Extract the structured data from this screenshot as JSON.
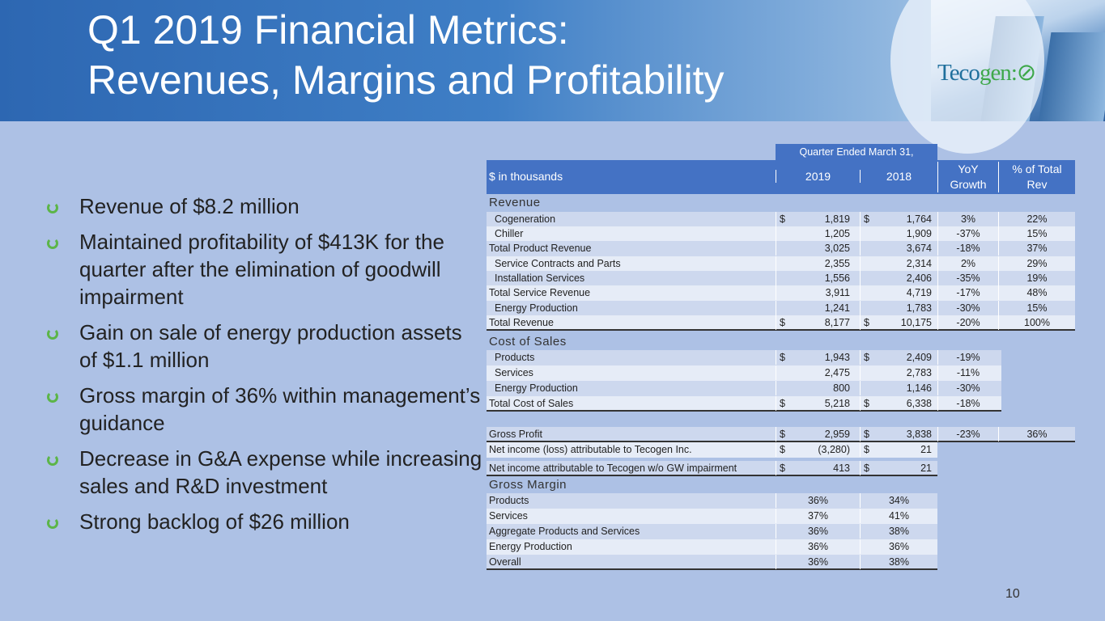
{
  "title": {
    "line1": "Q1 2019 Financial Metrics:",
    "line2": "Revenues, Margins and Profitability"
  },
  "logo": {
    "part1": "Teco",
    "part2": "gen"
  },
  "bullets": [
    "Revenue of $8.2 million",
    "Maintained profitability of $413K for the quarter after the elimination of goodwill impairment",
    "Gain on sale of energy production assets of $1.1 million",
    "Gross margin of 36% within management’s guidance",
    "Decrease in G&A expense while increasing sales and R&D investment",
    "Strong backlog of $26 million"
  ],
  "table": {
    "period_header": "Quarter Ended March 31,",
    "columns": {
      "label": "$ in thousands",
      "y2019": "2019",
      "y2018": "2018",
      "yoy1": "YoY",
      "yoy2": "Growth",
      "pct1": "% of Total",
      "pct2": "Rev"
    },
    "sections": {
      "revenue": "Revenue",
      "cost": "Cost of Sales",
      "margin": "Gross Margin"
    },
    "revenue_rows": [
      {
        "label": "Cogeneration",
        "d1": "$",
        "v2019": "1,819",
        "d2": "$",
        "v2018": "1,764",
        "yoy": "3%",
        "pct": "22%",
        "indent": true
      },
      {
        "label": "Chiller",
        "d1": "",
        "v2019": "1,205",
        "d2": "",
        "v2018": "1,909",
        "yoy": "-37%",
        "pct": "15%",
        "indent": true
      },
      {
        "label": "Total Product Revenue",
        "d1": "",
        "v2019": "3,025",
        "d2": "",
        "v2018": "3,674",
        "yoy": "-18%",
        "pct": "37%"
      },
      {
        "label": "Service Contracts and Parts",
        "d1": "",
        "v2019": "2,355",
        "d2": "",
        "v2018": "2,314",
        "yoy": "2%",
        "pct": "29%",
        "indent": true
      },
      {
        "label": "Installation Services",
        "d1": "",
        "v2019": "1,556",
        "d2": "",
        "v2018": "2,406",
        "yoy": "-35%",
        "pct": "19%",
        "indent": true
      },
      {
        "label": "Total Service Revenue",
        "d1": "",
        "v2019": "3,911",
        "d2": "",
        "v2018": "4,719",
        "yoy": "-17%",
        "pct": "48%"
      },
      {
        "label": "Energy Production",
        "d1": "",
        "v2019": "1,241",
        "d2": "",
        "v2018": "1,783",
        "yoy": "-30%",
        "pct": "15%",
        "indent": true
      },
      {
        "label": "Total Revenue",
        "d1": "$",
        "v2019": "8,177",
        "d2": "$",
        "v2018": "10,175",
        "yoy": "-20%",
        "pct": "100%"
      }
    ],
    "cost_rows": [
      {
        "label": "Products",
        "d1": "$",
        "v2019": "1,943",
        "d2": "$",
        "v2018": "2,409",
        "yoy": "-19%",
        "indent": true
      },
      {
        "label": "Services",
        "d1": "",
        "v2019": "2,475",
        "d2": "",
        "v2018": "2,783",
        "yoy": "-11%",
        "indent": true
      },
      {
        "label": "Energy Production",
        "d1": "",
        "v2019": "800",
        "d2": "",
        "v2018": "1,146",
        "yoy": "-30%",
        "indent": true
      },
      {
        "label": "Total Cost of Sales",
        "d1": "$",
        "v2019": "5,218",
        "d2": "$",
        "v2018": "6,338",
        "yoy": "-18%"
      }
    ],
    "profit_rows": [
      {
        "label": "Gross Profit",
        "d1": "$",
        "v2019": "2,959",
        "d2": "$",
        "v2018": "3,838",
        "yoy": "-23%",
        "pct": "36%"
      },
      {
        "label": "Net income (loss) attributable to Tecogen Inc.",
        "d1": "$",
        "v2019": "(3,280)",
        "d2": "$",
        "v2018": "21"
      },
      {
        "label": "Net income attributable to Tecogen w/o GW impairment",
        "d1": "$",
        "v2019": "413",
        "d2": "$",
        "v2018": "21"
      }
    ],
    "margin_rows": [
      {
        "label": "Products",
        "m2019": "36%",
        "m2018": "34%"
      },
      {
        "label": "Services",
        "m2019": "37%",
        "m2018": "41%"
      },
      {
        "label": "Aggregate Products and Services",
        "m2019": "36%",
        "m2018": "38%"
      },
      {
        "label": "Energy Production",
        "m2019": "36%",
        "m2018": "36%"
      },
      {
        "label": "Overall",
        "m2019": "36%",
        "m2018": "38%"
      }
    ]
  },
  "page_number": "10"
}
